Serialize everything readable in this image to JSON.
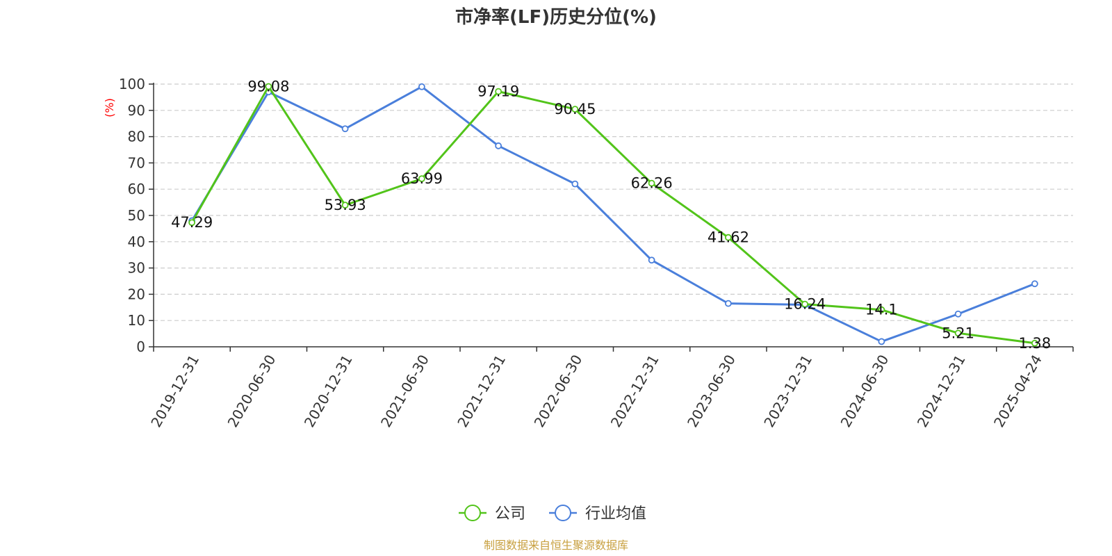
{
  "chart_data": {
    "type": "line",
    "title": "市净率(LF)历史分位(%)",
    "ylabel": "(%)",
    "ylim": [
      0,
      100
    ],
    "yticks": [
      0,
      10,
      20,
      30,
      40,
      50,
      60,
      70,
      80,
      90,
      100
    ],
    "grid": true,
    "legend_position": "bottom-center",
    "categories": [
      "2019-12-31",
      "2020-06-30",
      "2020-12-31",
      "2021-06-30",
      "2021-12-31",
      "2022-06-30",
      "2022-12-31",
      "2023-06-30",
      "2023-12-31",
      "2024-06-30",
      "2024-12-31",
      "2025-04-24"
    ],
    "series": [
      {
        "name": "公司",
        "color": "#52c41a",
        "values": [
          47.29,
          99.08,
          53.93,
          63.99,
          97.19,
          90.45,
          62.26,
          41.62,
          16.24,
          14.1,
          5.21,
          1.38
        ],
        "labels": [
          "47.29",
          "99.08",
          "53.93",
          "63.99",
          "97.19",
          "90.45",
          "62.26",
          "41.62",
          "16.24",
          "14.1",
          "5.21",
          "1.38"
        ]
      },
      {
        "name": "行业均值",
        "color": "#4a7fdb",
        "values": [
          48,
          97,
          83,
          99,
          76.5,
          62,
          33,
          16.5,
          16,
          2,
          12.5,
          24
        ]
      }
    ],
    "ylabel_color": "#ff0000",
    "source_color": "#c8a040"
  },
  "source": "制图数据来自恒生聚源数据库"
}
